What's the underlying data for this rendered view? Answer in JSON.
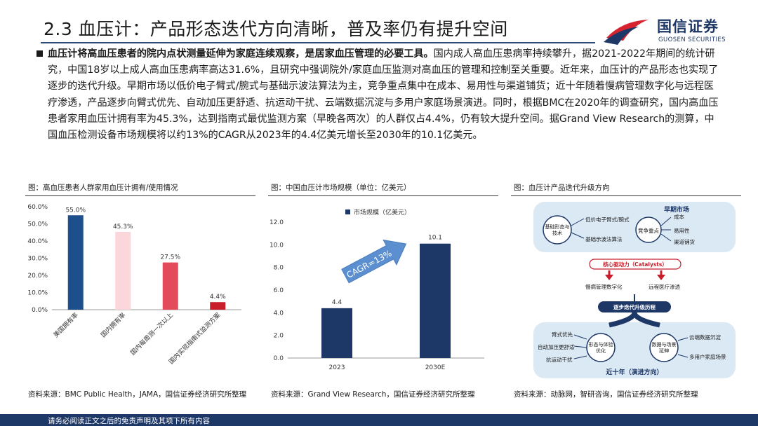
{
  "slide": {
    "title": "2.3 血压计：产品形态迭代方向清晰，普及率仍有提升空间"
  },
  "logo": {
    "name_cn": "国信证券",
    "name_en": "GUOSEN SECURITIES",
    "colors": {
      "red": "#d7232f",
      "blue": "#1d3766"
    }
  },
  "body": {
    "lead_bold": "血压计将高血压患者的院内点状测量延伸为家庭连续观察，是居家血压管理的必要工具。",
    "text": "国内成人高血压患病率持续攀升，据2021-2022年期间的统计研究，中国18岁以上成人高血压患病率高达31.6%，且研究中强调院外/家庭血压监测对高血压的管理和控制至关重要。近年来，血压计的产品形态也实现了逐步的迭代升级。早期市场以低价电子臂式/腕式与基础示波法算法为主，竞争重点集中在成本、易用性与渠道铺货；近十年随着慢病管理数字化与远程医疗渗透，产品逐步向臂式优先、自动加压更舒适、抗运动干扰、云端数据沉淀与多用户家庭场景演进。同时，根据BMC在2020年的调查研究，国内高血压患者家用血压计拥有率为45.3%，达到指南式最优监测方案（早晚各两次）的人群仅占4.4%，仍有较大提升空间。据Grand View Research的测算，中国血压检测设备市场规模将以约13%的CAGR从2023年的4.4亿美元增长至2030年的10.1亿美元。"
  },
  "figure1": {
    "caption": "图：高血压患者人群家用血压计拥有/使用情况",
    "source": "资料来源：BMC Public Health，JAMA，国信证券经济研究所整理"
  },
  "figure2": {
    "caption": "图：中国血压计市场规模（单位：亿美元）",
    "source": "资料来源：Grand View Research，国信证券经济研究所整理",
    "cagr_label": "CAGR=13%"
  },
  "figure3": {
    "caption": "图：血压计产品迭代升级方向",
    "source": "资料来源：动脉网，智研咨询，国信证券经济研究所整理",
    "diagram": {
      "top_title": "早期市场",
      "top_left_circle": "基础形态与技术",
      "top_left_items": [
        "低价电子臂式/腕式",
        "基础示波法算法"
      ],
      "top_right_circle": "竞争重点",
      "top_right_items": [
        "成本",
        "易用性",
        "渠道铺货"
      ],
      "catalyst": "核心驱动力（Catalysts）",
      "catalyst_left": "慢病管理数字化",
      "catalyst_right": "远程医疗渗透",
      "path": "逐步迭代升级历程",
      "bottom_left_circle": "形态与体验优化",
      "bottom_left_items": [
        "臂式优先",
        "自动加压更舒适",
        "抗运动干扰"
      ],
      "bottom_right_circle": "数据与场景延伸",
      "bottom_right_items": [
        "云端数据沉淀",
        "多用户家庭场景"
      ],
      "bottom_title": "近十年（演进方向）"
    }
  },
  "chart_data": [
    {
      "type": "bar",
      "categories": [
        "美国拥有率",
        "国内拥有率",
        "国内每周测一次以上",
        "国内实现指南式监测方案"
      ],
      "values": [
        55.0,
        45.3,
        27.5,
        4.4
      ],
      "value_labels": [
        "55.0%",
        "45.3%",
        "27.5%",
        "4.4%"
      ],
      "yticks": [
        "0.0%",
        "10.0%",
        "20.0%",
        "30.0%",
        "40.0%",
        "50.0%",
        "60.0%"
      ],
      "ylim": [
        0,
        60
      ],
      "colors": [
        "#1d4f8c",
        "#fbd6da",
        "#e34a5a",
        "#c81e2c"
      ],
      "grid": false
    },
    {
      "type": "bar",
      "categories": [
        "2023",
        "2030E"
      ],
      "values": [
        4.4,
        10.1
      ],
      "value_labels": [
        "4.4",
        "10.1"
      ],
      "series": [
        {
          "name": "市场规模（亿美元）",
          "values": [
            4.4,
            10.1
          ]
        }
      ],
      "yticks": [
        "0.0",
        "2.0",
        "4.0",
        "6.0",
        "8.0",
        "10.0",
        "12.0"
      ],
      "ylim": [
        0,
        12
      ],
      "legend": "top",
      "colors": [
        "#1d3766"
      ],
      "grid": false
    }
  ],
  "footer": {
    "disclaimer": "请务必阅读正文之后的免责声明及其项下所有内容"
  }
}
